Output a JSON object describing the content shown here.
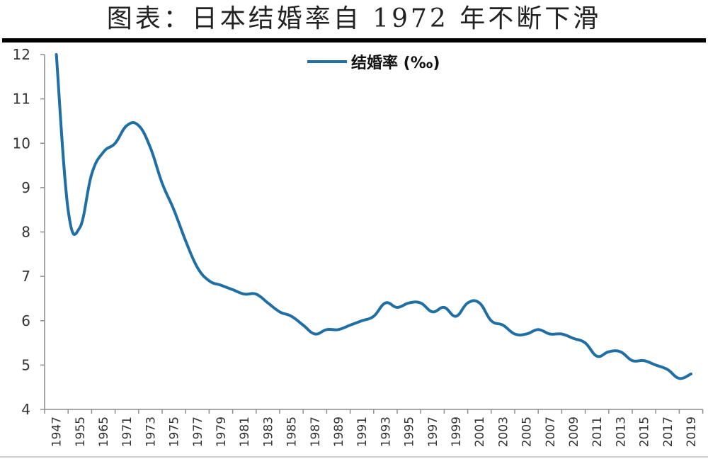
{
  "title": "图表：日本结婚率自 1972 年不断下滑",
  "legend": {
    "label": "结婚率 (‰)",
    "color": "#1F6FA5"
  },
  "chart_data": {
    "type": "line",
    "title": "图表：日本结婚率自 1972 年不断下滑",
    "xlabel": "",
    "ylabel": "",
    "ylim": [
      4,
      12
    ],
    "yticks": [
      4,
      5,
      6,
      7,
      8,
      9,
      10,
      11,
      12
    ],
    "grid": false,
    "legend_position": "top-center",
    "categories": [
      "1947",
      "1955",
      "1965",
      "1971",
      "1973",
      "1975",
      "1977",
      "1979",
      "1981",
      "1983",
      "1985",
      "1987",
      "1989",
      "1991",
      "1993",
      "1995",
      "1997",
      "1999",
      "2001",
      "2003",
      "2005",
      "2007",
      "2009",
      "2011",
      "2013",
      "2015",
      "2017",
      "2019"
    ],
    "series": [
      {
        "name": "结婚率 (‰)",
        "color": "#1F6FA5",
        "points_per_category": 2,
        "values": [
          12.0,
          8.5,
          8.1,
          9.3,
          9.8,
          10.0,
          10.4,
          10.4,
          9.9,
          9.1,
          8.5,
          7.8,
          7.2,
          6.9,
          6.8,
          6.7,
          6.6,
          6.6,
          6.4,
          6.2,
          6.1,
          5.9,
          5.7,
          5.8,
          5.8,
          5.9,
          6.0,
          6.1,
          6.4,
          6.3,
          6.4,
          6.4,
          6.2,
          6.3,
          6.1,
          6.4,
          6.4,
          6.0,
          5.9,
          5.7,
          5.7,
          5.8,
          5.7,
          5.7,
          5.6,
          5.5,
          5.2,
          5.3,
          5.3,
          5.1,
          5.1,
          5.0,
          4.9,
          4.7,
          4.8
        ]
      }
    ]
  }
}
